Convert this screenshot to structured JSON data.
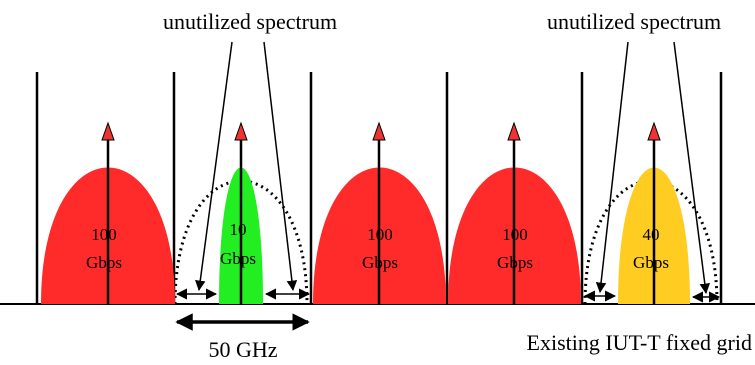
{
  "labels": {
    "unutilized_left": "unutilized spectrum",
    "unutilized_right": "unutilized spectrum",
    "spacing": "50 GHz",
    "grid": "Existing IUT-T fixed grid"
  },
  "channels": [
    {
      "rate": "100",
      "unit": "Gbps",
      "color": "#ff2a2a"
    },
    {
      "rate": "10",
      "unit": "Gbps",
      "color": "#22ee22"
    },
    {
      "rate": "100",
      "unit": "Gbps",
      "color": "#ff2a2a"
    },
    {
      "rate": "100",
      "unit": "Gbps",
      "color": "#ff2a2a"
    },
    {
      "rate": "40",
      "unit": "Gbps",
      "color": "#ffcc22"
    }
  ],
  "colors": {
    "arrow_head": "#ee3333",
    "line": "#000000"
  }
}
